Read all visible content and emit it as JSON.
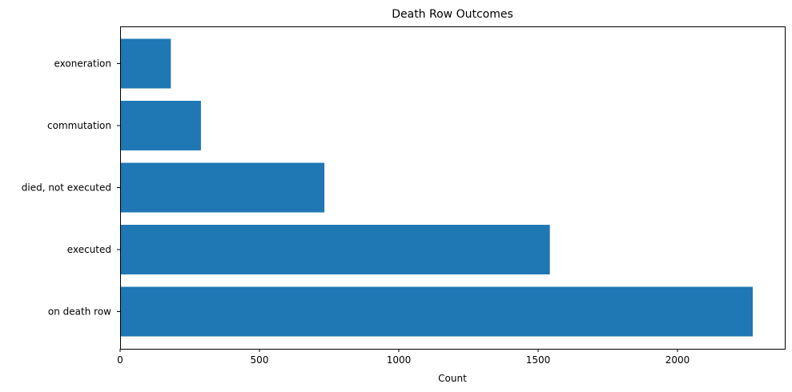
{
  "chart_data": {
    "type": "bar",
    "orientation": "horizontal",
    "title": "Death Row Outcomes",
    "xlabel": "Count",
    "ylabel": "",
    "categories": [
      "on death row",
      "executed",
      "died, not executed",
      "commutation",
      "exoneration"
    ],
    "values": [
      2270,
      1542,
      733,
      290,
      182
    ],
    "xlim": [
      0,
      2385
    ],
    "xticks": [
      0,
      500,
      1000,
      1500,
      2000
    ],
    "bar_color": "#1f77b4",
    "grid": false,
    "legend": "none"
  }
}
